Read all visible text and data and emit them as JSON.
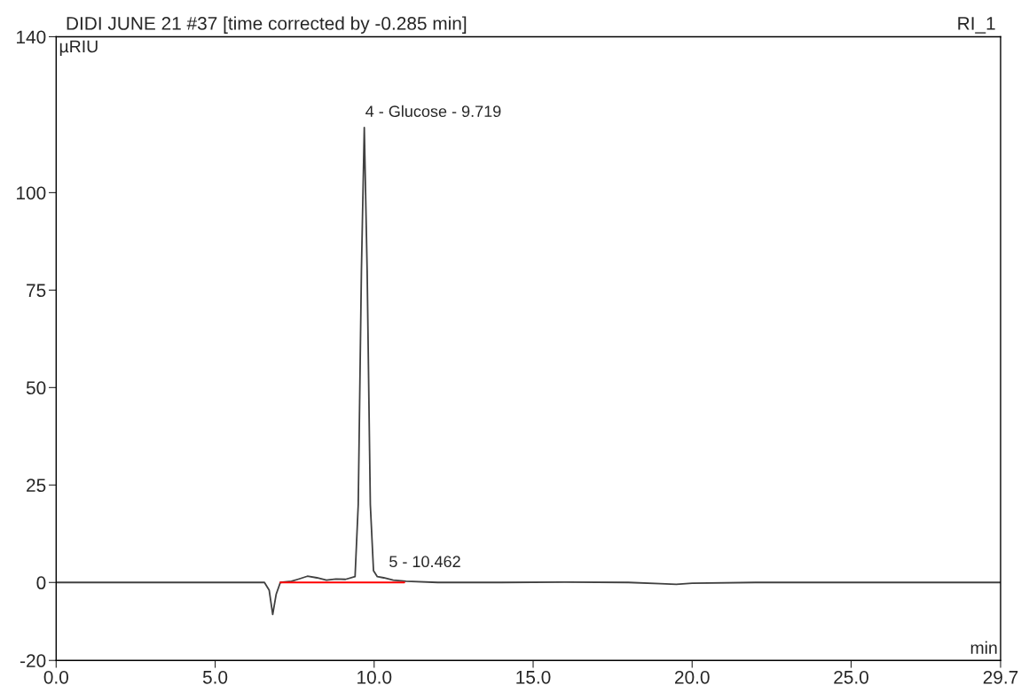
{
  "chart_data": {
    "type": "line",
    "title": "DIDI JUNE 21 #37 [time corrected by -0.285 min]",
    "subtitle": "RI_1",
    "xlabel": "min",
    "ylabel": "µRIU",
    "series": [
      {
        "color": "#404040",
        "x": [
          0,
          2,
          4,
          6,
          6.55,
          6.7,
          6.81,
          6.92,
          7.05,
          7.4,
          7.6,
          7.9,
          8.2,
          8.5,
          8.8,
          9.1,
          9.4,
          9.5,
          9.6,
          9.69,
          9.78,
          9.88,
          9.98,
          10.1,
          10.3,
          10.6,
          11.0,
          12,
          14,
          16,
          18,
          19,
          19.5,
          20,
          22,
          24,
          26,
          28,
          29.7
        ],
        "values": [
          0,
          0,
          0,
          0,
          0,
          -2,
          -8.2,
          -3,
          0,
          0.3,
          0.8,
          1.6,
          1.2,
          0.6,
          0.9,
          0.8,
          1.5,
          20,
          80,
          116.7,
          80,
          20,
          3,
          1.5,
          1.2,
          0.6,
          0.3,
          0,
          0,
          0.1,
          0,
          -0.3,
          -0.5,
          -0.2,
          0,
          0,
          0,
          0,
          0
        ]
      },
      {
        "color": "#ff0000",
        "x": [
          7.05,
          10.95
        ],
        "values": [
          0,
          0
        ]
      }
    ],
    "annotations": [
      {
        "text": "4 - Glucose - 9.719",
        "x": 9.719,
        "y": 116.7
      },
      {
        "text": "5 - 10.462",
        "x": 10.462,
        "y": 1.2
      }
    ],
    "xlim": [
      0,
      29.7
    ],
    "ylim": [
      -20,
      140
    ],
    "xticks": [
      {
        "value": 0,
        "label": "0.0"
      },
      {
        "value": 5,
        "label": "5.0"
      },
      {
        "value": 10,
        "label": "10.0"
      },
      {
        "value": 15,
        "label": "15.0"
      },
      {
        "value": 20,
        "label": "20.0"
      },
      {
        "value": 25,
        "label": "25.0"
      },
      29.7
    ],
    "yticks": [
      -20,
      0,
      25,
      50,
      75,
      100,
      140
    ],
    "grid": false,
    "legend": false,
    "marker": "none",
    "line_style": "solid"
  }
}
